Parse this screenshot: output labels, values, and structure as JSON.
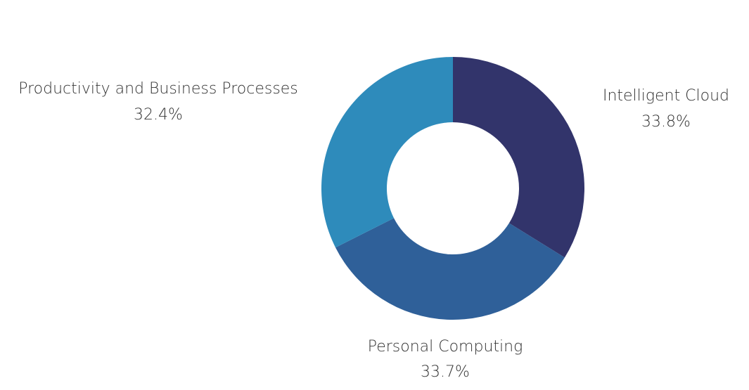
{
  "chart_data": {
    "type": "pie",
    "donut": true,
    "title": "",
    "categories": [
      "Intelligent Cloud",
      "Personal Computing",
      "Productivity and Business Processes"
    ],
    "values": [
      33.8,
      33.7,
      32.4
    ],
    "value_labels": [
      "33.8%",
      "33.7%",
      "32.4%"
    ],
    "colors": [
      "#32346b",
      "#2f6099",
      "#2e8bbb"
    ],
    "start_angle_deg": 0,
    "direction": "clockwise",
    "legend": "none",
    "labels_outside": true
  }
}
